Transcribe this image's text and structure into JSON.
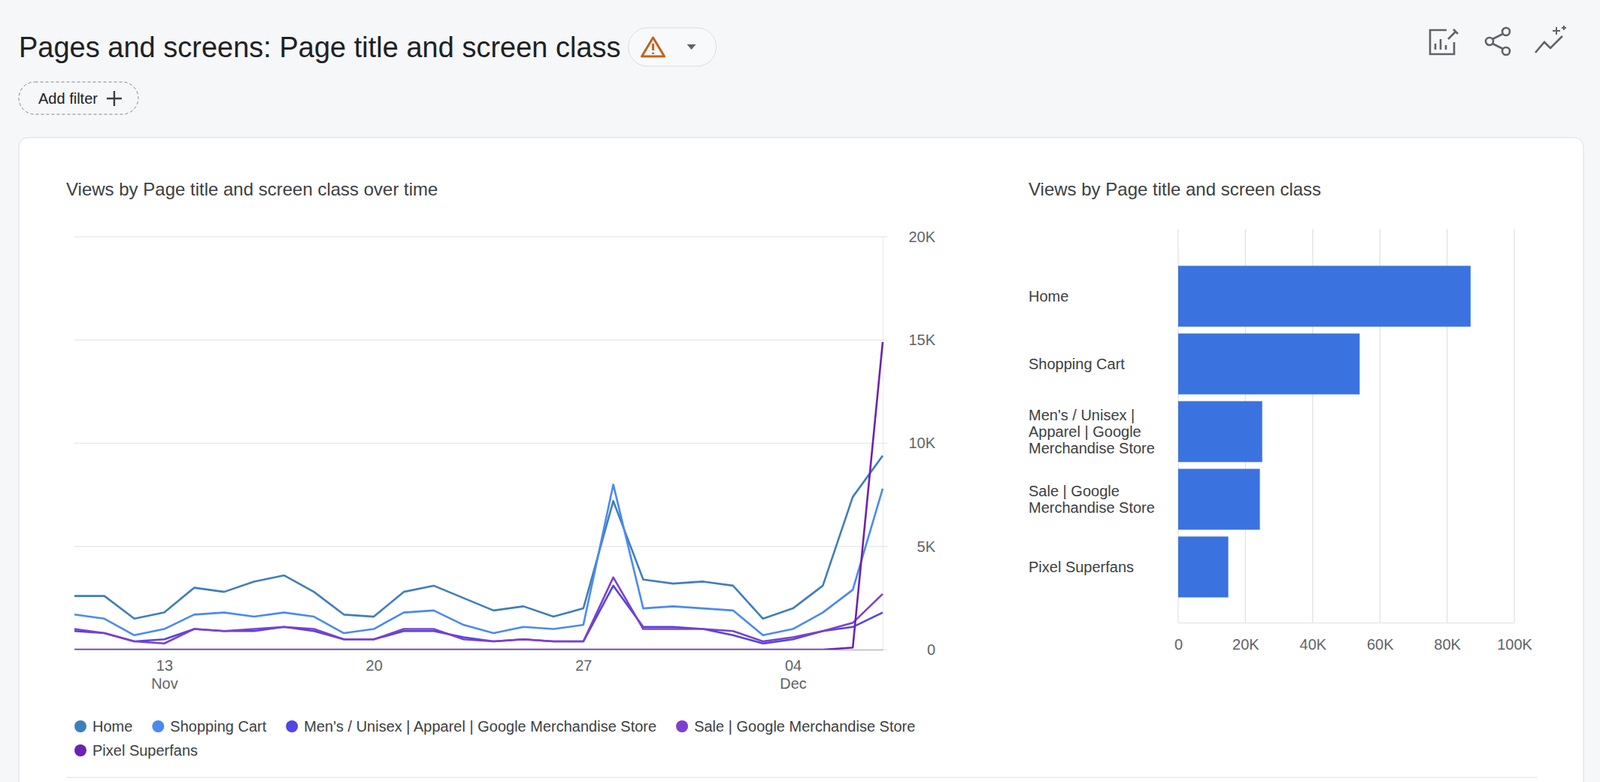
{
  "header": {
    "title": "Pages and screens: Page title and screen class",
    "filter": "Add filter"
  },
  "chart_data": [
    {
      "type": "line",
      "title": "Views by Page title and screen class over time",
      "categories": [
        null,
        null,
        null,
        "13 Nov",
        null,
        null,
        null,
        null,
        null,
        null,
        "20",
        null,
        null,
        null,
        null,
        null,
        null,
        "27",
        null,
        null,
        null,
        null,
        null,
        null,
        "04 Dec",
        null,
        null,
        null
      ],
      "series": [
        {
          "name": "Home",
          "color": "#3f7ebd",
          "values": [
            2600,
            2600,
            1500,
            1800,
            3000,
            2800,
            3300,
            3600,
            2800,
            1700,
            1600,
            2800,
            3100,
            2500,
            1900,
            2100,
            1600,
            2000,
            7200,
            3400,
            3200,
            3300,
            3100,
            1500,
            2000,
            3100,
            7400,
            9400
          ]
        },
        {
          "name": "Shopping Cart",
          "color": "#4a8af0",
          "values": [
            1700,
            1500,
            700,
            1000,
            1700,
            1800,
            1600,
            1800,
            1600,
            800,
            1000,
            1800,
            1900,
            1200,
            800,
            1100,
            1000,
            1200,
            8000,
            2000,
            2100,
            2000,
            1900,
            700,
            1000,
            1800,
            2900,
            7800
          ]
        },
        {
          "name": "Men's / Unisex | Apparel | Google Merchandise Store",
          "color": "#5046e2",
          "values": [
            900,
            800,
            400,
            500,
            1000,
            900,
            900,
            1100,
            900,
            500,
            500,
            900,
            900,
            600,
            400,
            500,
            400,
            400,
            3100,
            1100,
            1100,
            1000,
            700,
            300,
            500,
            900,
            1100,
            1800
          ]
        },
        {
          "name": "Sale | Google Merchandise Store",
          "color": "#7e3fcc",
          "values": [
            1000,
            800,
            400,
            300,
            1000,
            900,
            1000,
            1100,
            1000,
            500,
            500,
            1000,
            1000,
            500,
            400,
            500,
            400,
            400,
            3500,
            1000,
            1000,
            1000,
            900,
            400,
            600,
            900,
            1300,
            2700
          ]
        },
        {
          "name": "Pixel Superfans",
          "color": "#6c22b0",
          "values": [
            0,
            0,
            0,
            0,
            0,
            0,
            0,
            0,
            0,
            0,
            0,
            0,
            0,
            0,
            0,
            0,
            0,
            0,
            0,
            0,
            0,
            0,
            0,
            0,
            0,
            0,
            100,
            14900
          ]
        }
      ],
      "ylim": [
        0,
        20000
      ],
      "yticks": [
        0,
        {
          "value": 5000,
          "label": "5K"
        },
        {
          "value": 10000,
          "label": "10K"
        },
        {
          "value": 15000,
          "label": "15K"
        },
        {
          "value": 20000,
          "label": "20K"
        }
      ],
      "grid": true,
      "legend": "bottom"
    },
    {
      "type": "bar",
      "title": "Views by Page title and screen class",
      "orientation": "horizontal",
      "categories": [
        "Home",
        "Shopping Cart",
        "Men's / Unisex | Apparel | Google Merchandise Store",
        "Sale | Google Merchandise Store",
        "Pixel Superfans"
      ],
      "values": [
        87000,
        54000,
        25000,
        24300,
        14900
      ],
      "color": "#3a73e0",
      "xlim": [
        0,
        100000
      ],
      "xticks": [
        0,
        {
          "value": 20000,
          "label": "20K"
        },
        {
          "value": 40000,
          "label": "40K"
        },
        {
          "value": 60000,
          "label": "60K"
        },
        {
          "value": 80000,
          "label": "80K"
        },
        {
          "value": 100000,
          "label": "100K"
        }
      ],
      "grid": true
    }
  ]
}
